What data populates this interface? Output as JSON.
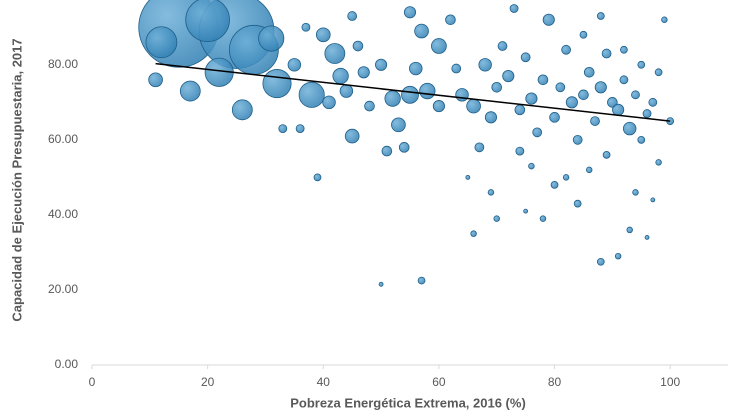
{
  "chart_data": {
    "type": "bubble",
    "x_label": "Pobreza Energética Extrema, 2016 (%)",
    "y_label": "Capacidad de Ejecución Presupuestaria, 2017",
    "xlim": [
      0,
      110
    ],
    "ylim": [
      0,
      97
    ],
    "xticks": [
      0,
      20,
      40,
      60,
      80,
      100
    ],
    "yticks": [
      {
        "value": 0,
        "label": "0.00"
      },
      {
        "value": 20,
        "label": "20.00"
      },
      {
        "value": 40,
        "label": "40.00"
      },
      {
        "value": 60,
        "label": "60.00"
      },
      {
        "value": 80,
        "label": "80.00"
      }
    ],
    "color": "#2f7fb3",
    "trendline": {
      "color": "#000000",
      "x": [
        11,
        100
      ],
      "y": [
        80.3,
        65
      ]
    },
    "x": [
      15,
      25,
      28,
      20,
      12,
      22,
      31,
      32,
      26,
      38,
      42,
      45,
      17,
      11,
      35,
      40,
      43,
      44,
      47,
      50,
      52,
      53,
      55,
      54,
      56,
      57,
      58,
      60,
      62,
      64,
      66,
      67,
      68,
      69,
      70,
      71,
      72,
      73,
      74,
      75,
      76,
      77,
      78,
      79,
      80,
      81,
      82,
      83,
      84,
      85,
      86,
      87,
      88,
      89,
      90,
      91,
      92,
      93,
      94,
      95,
      96,
      97,
      98,
      99,
      100,
      36,
      41,
      48,
      51,
      57,
      50,
      39,
      63,
      65,
      66,
      69,
      70,
      74,
      80,
      84,
      88,
      91,
      93,
      94,
      96,
      97,
      82,
      86,
      89,
      75,
      60,
      46,
      33,
      37,
      85,
      88,
      92,
      95,
      98,
      78,
      76,
      55,
      45
    ],
    "values": [
      90,
      89,
      84,
      92,
      86,
      78,
      87,
      75,
      68,
      72,
      83,
      61,
      73,
      76,
      80,
      88,
      77,
      73,
      78,
      80,
      71,
      64,
      94,
      58,
      79,
      89,
      73,
      85,
      92,
      72,
      69,
      58,
      80,
      66,
      74,
      85,
      77,
      95,
      68,
      82,
      71,
      62,
      76,
      92,
      66,
      74,
      84,
      70,
      60,
      72,
      78,
      65,
      74,
      83,
      70,
      68,
      76,
      63,
      72,
      80,
      67,
      70,
      54,
      92,
      65,
      63,
      70,
      69,
      57,
      22.5,
      21.5,
      50,
      79,
      50,
      35,
      46,
      39,
      57,
      48,
      43,
      27.5,
      29,
      36,
      46,
      34,
      44,
      50,
      52,
      56,
      41,
      69,
      85,
      63,
      90,
      88,
      93,
      84,
      60,
      78,
      39,
      53,
      72,
      93
    ],
    "size": [
      400,
      350,
      150,
      120,
      60,
      50,
      40,
      50,
      25,
      40,
      25,
      12,
      25,
      12,
      10,
      12,
      15,
      10,
      8,
      8,
      15,
      12,
      8,
      6,
      10,
      12,
      15,
      14,
      6,
      10,
      12,
      5,
      10,
      8,
      6,
      5,
      8,
      4,
      6,
      5,
      8,
      5,
      6,
      8,
      6,
      5,
      5,
      8,
      5,
      6,
      6,
      5,
      8,
      5,
      6,
      8,
      4,
      10,
      4,
      3,
      4,
      4,
      2,
      2,
      3,
      4,
      10,
      6,
      6,
      3,
      1,
      3,
      5,
      1,
      2,
      2,
      2,
      4,
      3,
      3,
      3,
      2,
      2,
      2,
      1,
      1,
      2,
      2,
      3,
      1,
      8,
      6,
      4,
      4,
      3,
      3,
      3,
      3,
      3,
      2,
      2,
      18,
      5
    ]
  }
}
